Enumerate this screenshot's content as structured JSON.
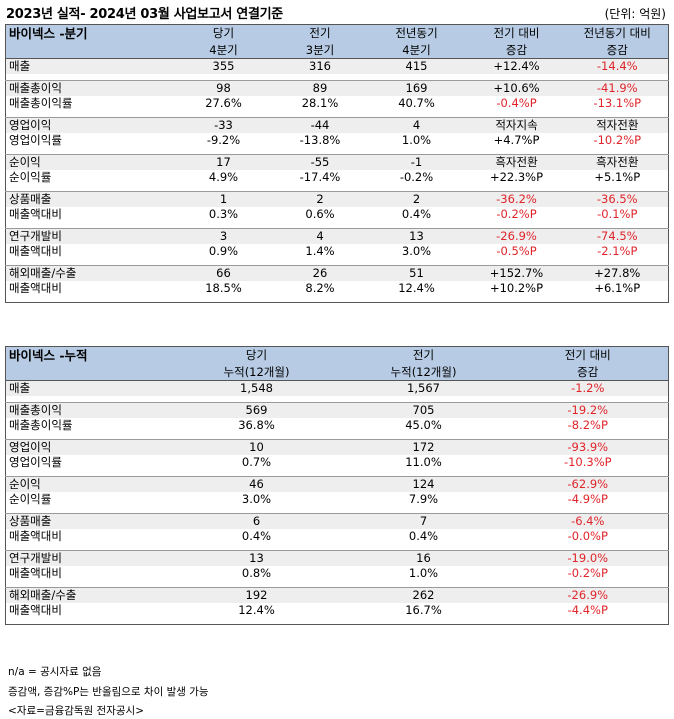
{
  "page_title": "2023년 실적- 2024년 03월 사업보고서 연결기준",
  "unit": "(단위: 억원)",
  "quarter": {
    "section_title": "바이넥스 -분기",
    "headers": [
      {
        "top": "당기",
        "bottom": "4분기"
      },
      {
        "top": "전기",
        "bottom": "3분기"
      },
      {
        "top": "전년동기",
        "bottom": "4분기"
      },
      {
        "top": "전기 대비",
        "bottom": "증감"
      },
      {
        "top": "전년동기 대비",
        "bottom": "증감"
      }
    ],
    "groups": [
      {
        "rows": [
          {
            "label": "매출",
            "values": [
              "355",
              "316",
              "415",
              "+12.4%",
              "-14.4%"
            ]
          }
        ]
      },
      {
        "rows": [
          {
            "label": "매출총이익",
            "values": [
              "98",
              "89",
              "169",
              "+10.6%",
              "-41.9%"
            ]
          },
          {
            "label": "매출총이익률",
            "values": [
              "27.6%",
              "28.1%",
              "40.7%",
              "-0.4%P",
              "-13.1%P"
            ]
          }
        ]
      },
      {
        "rows": [
          {
            "label": "영업이익",
            "values": [
              "-33",
              "-44",
              "4",
              "적자지속",
              "적자전환"
            ]
          },
          {
            "label": "영업이익률",
            "values": [
              "-9.2%",
              "-13.8%",
              "1.0%",
              "+4.7%P",
              "-10.2%P"
            ]
          }
        ]
      },
      {
        "rows": [
          {
            "label": "순이익",
            "values": [
              "17",
              "-55",
              "-1",
              "흑자전환",
              "흑자전환"
            ]
          },
          {
            "label": "순이익률",
            "values": [
              "4.9%",
              "-17.4%",
              "-0.2%",
              "+22.3%P",
              "+5.1%P"
            ]
          }
        ]
      },
      {
        "rows": [
          {
            "label": "상품매출",
            "values": [
              "1",
              "2",
              "2",
              "-36.2%",
              "-36.5%"
            ]
          },
          {
            "label": "매출액대비",
            "values": [
              "0.3%",
              "0.6%",
              "0.4%",
              "-0.2%P",
              "-0.1%P"
            ]
          }
        ]
      },
      {
        "rows": [
          {
            "label": "연구개발비",
            "values": [
              "3",
              "4",
              "13",
              "-26.9%",
              "-74.5%"
            ]
          },
          {
            "label": "매출액대비",
            "values": [
              "0.9%",
              "1.4%",
              "3.0%",
              "-0.5%P",
              "-2.1%P"
            ]
          }
        ]
      },
      {
        "rows": [
          {
            "label": "해외매출/수출",
            "values": [
              "66",
              "26",
              "51",
              "+152.7%",
              "+27.8%"
            ]
          },
          {
            "label": "매출액대비",
            "values": [
              "18.5%",
              "8.2%",
              "12.4%",
              "+10.2%P",
              "+6.1%P"
            ]
          }
        ]
      }
    ]
  },
  "cumulative": {
    "section_title": "바이넥스 -누적",
    "headers": [
      {
        "top": "당기",
        "bottom": "누적(12개월)"
      },
      {
        "top": "전기",
        "bottom": "누적(12개월)"
      },
      {
        "top": "전기 대비",
        "bottom": "증감"
      }
    ],
    "groups": [
      {
        "rows": [
          {
            "label": "매출",
            "values": [
              "1,548",
              "1,567",
              "-1.2%"
            ]
          }
        ]
      },
      {
        "rows": [
          {
            "label": "매출총이익",
            "values": [
              "569",
              "705",
              "-19.2%"
            ]
          },
          {
            "label": "매출총이익률",
            "values": [
              "36.8%",
              "45.0%",
              "-8.2%P"
            ]
          }
        ]
      },
      {
        "rows": [
          {
            "label": "영업이익",
            "values": [
              "10",
              "172",
              "-93.9%"
            ]
          },
          {
            "label": "영업이익률",
            "values": [
              "0.7%",
              "11.0%",
              "-10.3%P"
            ]
          }
        ]
      },
      {
        "rows": [
          {
            "label": "순이익",
            "values": [
              "46",
              "124",
              "-62.9%"
            ]
          },
          {
            "label": "순이익률",
            "values": [
              "3.0%",
              "7.9%",
              "-4.9%P"
            ]
          }
        ]
      },
      {
        "rows": [
          {
            "label": "상품매출",
            "values": [
              "6",
              "7",
              "-6.4%"
            ]
          },
          {
            "label": "매출액대비",
            "values": [
              "0.4%",
              "0.4%",
              "-0.0%P"
            ]
          }
        ]
      },
      {
        "rows": [
          {
            "label": "연구개발비",
            "values": [
              "13",
              "16",
              "-19.0%"
            ]
          },
          {
            "label": "매출액대비",
            "values": [
              "0.8%",
              "1.0%",
              "-0.2%P"
            ]
          }
        ]
      },
      {
        "rows": [
          {
            "label": "해외매출/수출",
            "values": [
              "192",
              "262",
              "-26.9%"
            ]
          },
          {
            "label": "매출액대비",
            "values": [
              "12.4%",
              "16.7%",
              "-4.4%P"
            ]
          }
        ]
      }
    ]
  },
  "footnotes": [
    "n/a = 공시자료 없음",
    "증감액, 증감%P는 반올림으로 차이 발생 가능",
    "<자료=금융감독원 전자공시>"
  ],
  "colors": {
    "header_bg": "#b7cce4",
    "row_shade": "#eeeeee",
    "negative": "#e0242a"
  }
}
